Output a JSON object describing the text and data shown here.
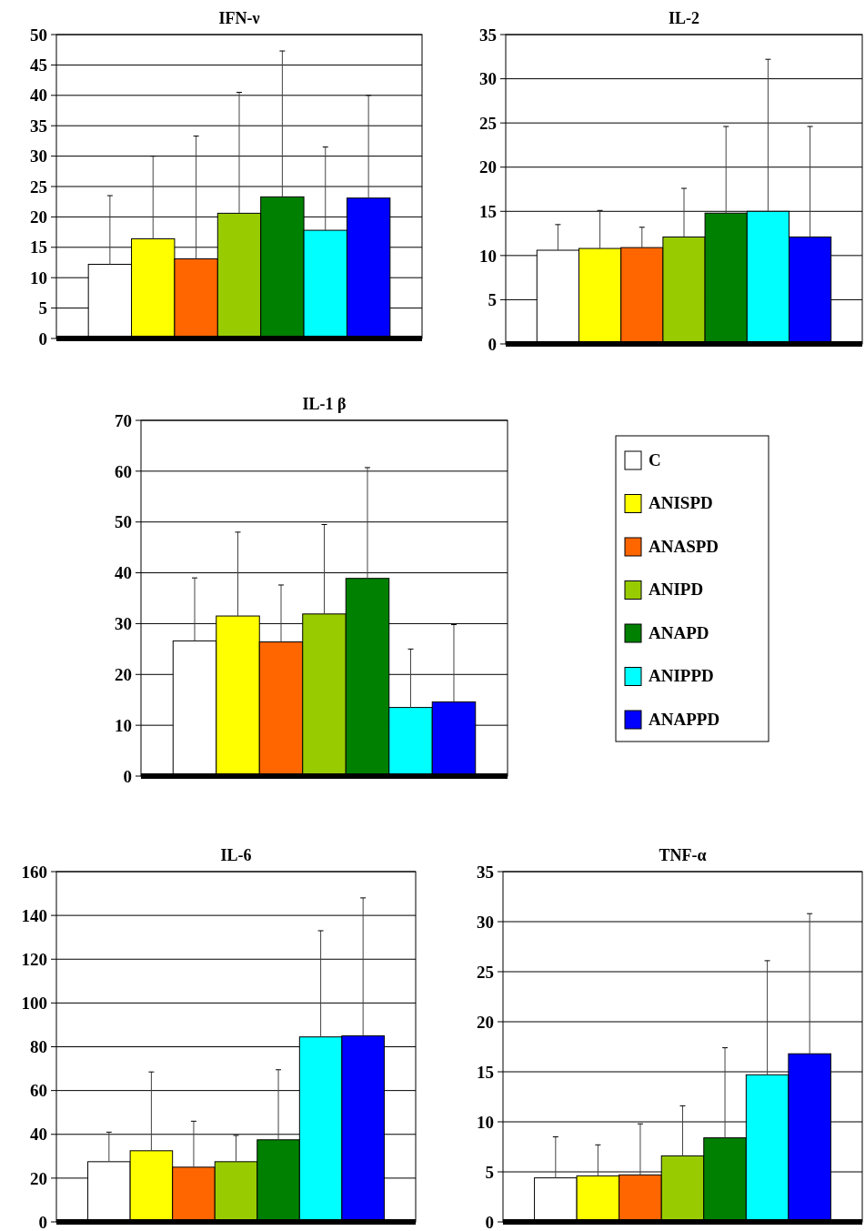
{
  "chart_data": [
    {
      "type": "bar",
      "title": "IFN-ν",
      "categories": [
        null
      ],
      "ylim": [
        0,
        50
      ],
      "yticks": [
        0,
        5,
        10,
        15,
        20,
        25,
        30,
        35,
        40,
        45,
        50
      ],
      "grid": "y",
      "legend": false,
      "series": [
        {
          "color": "#ffffff",
          "values": [
            12.2
          ],
          "errors": [
            [
              12.2,
              23.5
            ]
          ]
        },
        {
          "color": "#ffff00",
          "values": [
            16.4
          ],
          "errors": [
            [
              16.4,
              30
            ]
          ]
        },
        {
          "color": "#ff6600",
          "values": [
            13.1
          ],
          "errors": [
            [
              13.1,
              33.3
            ]
          ]
        },
        {
          "color": "#99cc00",
          "values": [
            20.6
          ],
          "errors": [
            [
              20.6,
              40.5
            ]
          ]
        },
        {
          "color": "#008000",
          "values": [
            23.3
          ],
          "errors": [
            [
              23.3,
              47.3
            ]
          ]
        },
        {
          "color": "#00ffff",
          "values": [
            17.8
          ],
          "errors": [
            [
              17.8,
              31.5
            ]
          ]
        },
        {
          "color": "#0000ff",
          "values": [
            23.1
          ],
          "errors": [
            [
              23.1,
              40
            ]
          ]
        }
      ]
    },
    {
      "type": "bar",
      "title": "IL-2",
      "categories": [
        null
      ],
      "ylim": [
        0,
        35
      ],
      "yticks": [
        0,
        5,
        10,
        15,
        20,
        25,
        30,
        35
      ],
      "grid": "y",
      "legend": false,
      "series": [
        {
          "color": "#ffffff",
          "values": [
            10.6
          ],
          "errors": [
            [
              10.6,
              13.5
            ]
          ]
        },
        {
          "color": "#ffff00",
          "values": [
            10.8
          ],
          "errors": [
            [
              10.8,
              15.1
            ]
          ]
        },
        {
          "color": "#ff6600",
          "values": [
            10.9
          ],
          "errors": [
            [
              10.9,
              13.2
            ]
          ]
        },
        {
          "color": "#99cc00",
          "values": [
            12.1
          ],
          "errors": [
            [
              12.1,
              17.6
            ]
          ]
        },
        {
          "color": "#008000",
          "values": [
            14.8
          ],
          "errors": [
            [
              14.8,
              24.6
            ]
          ]
        },
        {
          "color": "#00ffff",
          "values": [
            15.0
          ],
          "errors": [
            [
              15.0,
              32.2
            ]
          ]
        },
        {
          "color": "#0000ff",
          "values": [
            12.1
          ],
          "errors": [
            [
              12.1,
              24.6
            ]
          ]
        }
      ]
    },
    {
      "type": "bar",
      "title": "IL-1 β",
      "categories": [
        null
      ],
      "ylim": [
        0,
        70
      ],
      "yticks": [
        0,
        10,
        20,
        30,
        40,
        50,
        60,
        70
      ],
      "grid": "y",
      "legend": "right",
      "series": [
        {
          "name": "C",
          "color": "#ffffff",
          "values": [
            26.6
          ],
          "errors": [
            [
              26.6,
              39
            ]
          ]
        },
        {
          "name": "ANISPD",
          "color": "#ffff00",
          "values": [
            31.5
          ],
          "errors": [
            [
              31.5,
              48
            ]
          ]
        },
        {
          "name": "ANASPD",
          "color": "#ff6600",
          "values": [
            26.4
          ],
          "errors": [
            [
              26.4,
              37.6
            ]
          ]
        },
        {
          "name": "ANIPD",
          "color": "#99cc00",
          "values": [
            31.9
          ],
          "errors": [
            [
              31.9,
              49.5
            ]
          ]
        },
        {
          "name": "ANAPD",
          "color": "#008000",
          "values": [
            38.9
          ],
          "errors": [
            [
              38.9,
              60.7
            ]
          ]
        },
        {
          "name": "ANIPPD",
          "color": "#00ffff",
          "values": [
            13.5
          ],
          "errors": [
            [
              13.5,
              25
            ]
          ]
        },
        {
          "name": "ANAPPD",
          "color": "#0000ff",
          "values": [
            14.6
          ],
          "errors": [
            [
              14.6,
              29.8
            ]
          ]
        }
      ]
    },
    {
      "type": "bar",
      "title": "IL-6",
      "categories": [
        null
      ],
      "ylim": [
        0,
        160
      ],
      "yticks": [
        0,
        20,
        40,
        60,
        80,
        100,
        120,
        140,
        160
      ],
      "grid": "y",
      "legend": false,
      "series": [
        {
          "color": "#ffffff",
          "values": [
            27.5
          ],
          "errors": [
            [
              27.5,
              41
            ]
          ]
        },
        {
          "color": "#ffff00",
          "values": [
            32.5
          ],
          "errors": [
            [
              32.5,
              68.5
            ]
          ]
        },
        {
          "color": "#ff6600",
          "values": [
            25
          ],
          "errors": [
            [
              25,
              46
            ]
          ]
        },
        {
          "color": "#99cc00",
          "values": [
            27.5
          ],
          "errors": [
            [
              27.5,
              39.5
            ]
          ]
        },
        {
          "color": "#008000",
          "values": [
            37.5
          ],
          "errors": [
            [
              37.5,
              69.5
            ]
          ]
        },
        {
          "color": "#00ffff",
          "values": [
            84.5
          ],
          "errors": [
            [
              84.5,
              133
            ]
          ]
        },
        {
          "color": "#0000ff",
          "values": [
            85
          ],
          "errors": [
            [
              85,
              148
            ]
          ]
        }
      ]
    },
    {
      "type": "bar",
      "title": "TNF-α",
      "categories": [
        null
      ],
      "ylim": [
        0,
        35
      ],
      "yticks": [
        0,
        5,
        10,
        15,
        20,
        25,
        30,
        35
      ],
      "grid": "y",
      "legend": false,
      "series": [
        {
          "color": "#ffffff",
          "values": [
            4.4
          ],
          "errors": [
            [
              4.4,
              8.5
            ]
          ]
        },
        {
          "color": "#ffff00",
          "values": [
            4.6
          ],
          "errors": [
            [
              4.6,
              7.7
            ]
          ]
        },
        {
          "color": "#ff6600",
          "values": [
            4.7
          ],
          "errors": [
            [
              4.7,
              9.8
            ]
          ]
        },
        {
          "color": "#99cc00",
          "values": [
            6.6
          ],
          "errors": [
            [
              6.6,
              11.6
            ]
          ]
        },
        {
          "color": "#008000",
          "values": [
            8.4
          ],
          "errors": [
            [
              8.4,
              17.4
            ]
          ]
        },
        {
          "color": "#00ffff",
          "values": [
            14.7
          ],
          "errors": [
            [
              14.7,
              26.1
            ]
          ]
        },
        {
          "color": "#0000ff",
          "values": [
            16.8
          ],
          "errors": [
            [
              16.8,
              30.8
            ]
          ]
        }
      ]
    }
  ]
}
